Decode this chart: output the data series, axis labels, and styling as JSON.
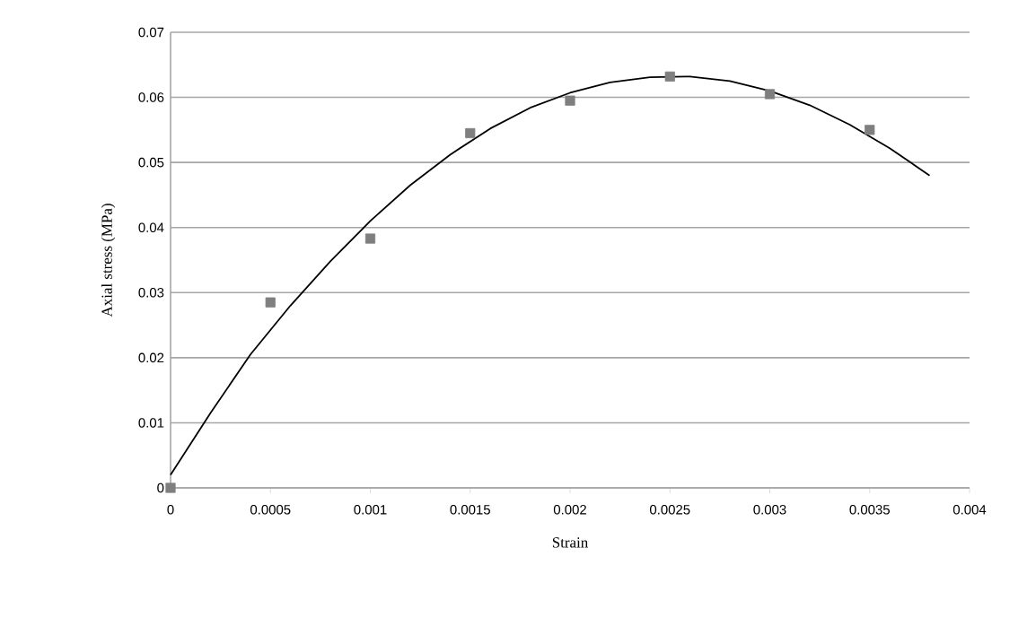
{
  "chart_data": {
    "type": "scatter",
    "xlabel": "Strain",
    "ylabel": "Axial stress (MPa)",
    "xlim": [
      0,
      0.004
    ],
    "ylim": [
      0,
      0.07
    ],
    "xticks": [
      0,
      0.0005,
      0.001,
      0.0015,
      0.002,
      0.0025,
      0.003,
      0.0035,
      0.004
    ],
    "yticks": [
      0,
      0.01,
      0.02,
      0.03,
      0.04,
      0.05,
      0.06,
      0.07
    ],
    "grid": "y",
    "marker": "square",
    "series": [
      {
        "color": "#7f7f7f",
        "x": [
          0,
          0.0005,
          0.001,
          0.0015,
          0.002,
          0.0025,
          0.003,
          0.0035
        ],
        "values": [
          0,
          0.0285,
          0.0383,
          0.0545,
          0.0595,
          0.0632,
          0.0605,
          0.055
        ]
      },
      {
        "type": "line",
        "color": "#000000",
        "marker": "none",
        "line_style": "solid",
        "x": [
          0,
          0.0002,
          0.0004,
          0.0006,
          0.0008,
          0.001,
          0.0012,
          0.0014,
          0.0016,
          0.0018,
          0.002,
          0.0022,
          0.0024,
          0.0026,
          0.0028,
          0.003,
          0.0032,
          0.0034,
          0.0036,
          0.0038
        ],
        "values": [
          0.002,
          0.0115,
          0.0205,
          0.028,
          0.0348,
          0.041,
          0.0465,
          0.0512,
          0.0552,
          0.0584,
          0.0607,
          0.0623,
          0.0631,
          0.0632,
          0.0625,
          0.061,
          0.0588,
          0.0558,
          0.0522,
          0.048
        ]
      }
    ]
  }
}
